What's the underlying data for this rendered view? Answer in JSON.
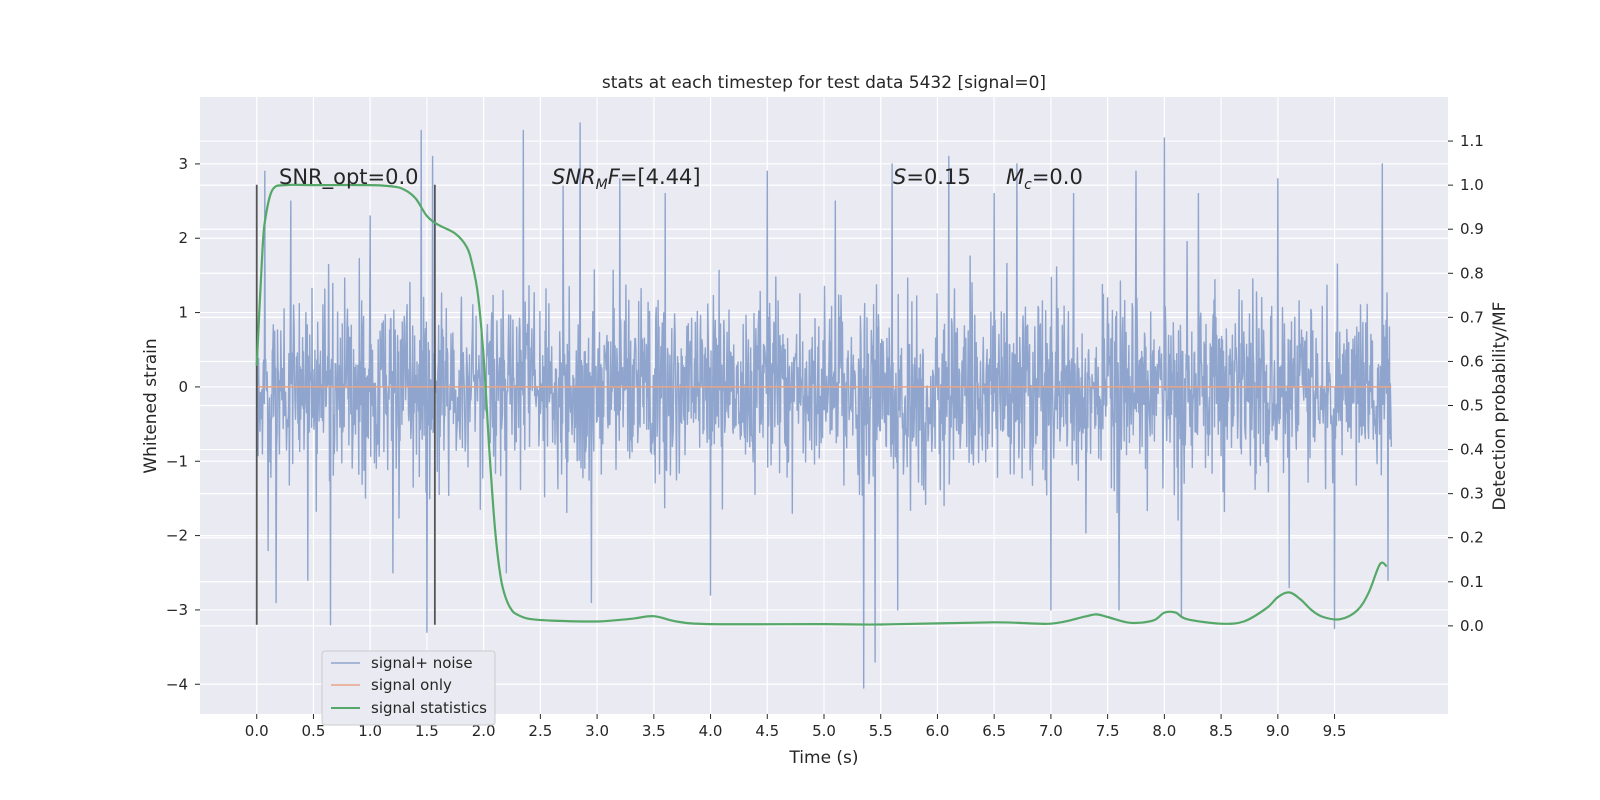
{
  "chart_data": {
    "type": "line",
    "title": "stats at each timestep for test data 5432 [signal=0]",
    "xlabel": "Time (s)",
    "ylabel": "Whitened strain",
    "y2label": "Detection probability/MF",
    "xlim": [
      -0.5,
      10.5
    ],
    "ylim": [
      -4.4,
      3.9
    ],
    "y2lim": [
      -0.2,
      1.2
    ],
    "x_ticks": [
      0.0,
      0.5,
      1.0,
      1.5,
      2.0,
      2.5,
      3.0,
      3.5,
      4.0,
      4.5,
      5.0,
      5.5,
      6.0,
      6.5,
      7.0,
      7.5,
      8.0,
      8.5,
      9.0,
      9.5
    ],
    "x_tick_labels": [
      "0.0",
      "0.5",
      "1.0",
      "1.5",
      "2.0",
      "2.5",
      "3.0",
      "3.5",
      "4.0",
      "4.5",
      "5.0",
      "5.5",
      "6.0",
      "6.5",
      "7.0",
      "7.5",
      "8.0",
      "8.5",
      "9.0",
      "9.5"
    ],
    "y_ticks": [
      3,
      2,
      1,
      0,
      -1,
      -2,
      -3,
      -4
    ],
    "y_tick_labels": [
      "3",
      "2",
      "1",
      "0",
      "−1",
      "−2",
      "−3",
      "−4"
    ],
    "y2_ticks": [
      1.1,
      1.0,
      0.9,
      0.8,
      0.7,
      0.6,
      0.5,
      0.4,
      0.3,
      0.2,
      0.1,
      0.0
    ],
    "y2_tick_labels": [
      "1.1",
      "1.0",
      "0.9",
      "0.8",
      "0.7",
      "0.6",
      "0.5",
      "0.4",
      "0.3",
      "0.2",
      "0.1",
      "0.0"
    ],
    "grid": true,
    "legend_position": "lower-left",
    "colors": {
      "background": "#eaeaf2",
      "grid": "#ffffff",
      "noise": "#8fa5cd",
      "signal": "#e8a487",
      "stats": "#55a868",
      "marker": "#555555"
    },
    "series": [
      {
        "name": "signal+ noise",
        "axis": "left",
        "x_range": [
          0.0,
          10.0
        ],
        "typical_range": [
          -1.5,
          1.5
        ],
        "peaks": [
          {
            "x": 0.07,
            "y": 2.9
          },
          {
            "x": 0.1,
            "y": -2.2
          },
          {
            "x": 0.17,
            "y": -2.9
          },
          {
            "x": 0.3,
            "y": 2.5
          },
          {
            "x": 0.45,
            "y": -2.6
          },
          {
            "x": 0.65,
            "y": -3.2
          },
          {
            "x": 1.0,
            "y": 2.3
          },
          {
            "x": 1.2,
            "y": -2.5
          },
          {
            "x": 1.45,
            "y": 3.45
          },
          {
            "x": 1.5,
            "y": -3.3
          },
          {
            "x": 1.55,
            "y": 3.1
          },
          {
            "x": 2.2,
            "y": -2.5
          },
          {
            "x": 2.35,
            "y": 3.45
          },
          {
            "x": 2.7,
            "y": 2.7
          },
          {
            "x": 2.85,
            "y": 3.55
          },
          {
            "x": 2.95,
            "y": -2.9
          },
          {
            "x": 3.2,
            "y": 2.8
          },
          {
            "x": 3.6,
            "y": 2.6
          },
          {
            "x": 4.0,
            "y": -2.8
          },
          {
            "x": 4.5,
            "y": 2.9
          },
          {
            "x": 5.1,
            "y": 2.5
          },
          {
            "x": 5.35,
            "y": -4.05
          },
          {
            "x": 5.45,
            "y": -3.7
          },
          {
            "x": 5.6,
            "y": 3.0
          },
          {
            "x": 5.65,
            "y": -3.0
          },
          {
            "x": 6.1,
            "y": 3.1
          },
          {
            "x": 6.5,
            "y": 2.6
          },
          {
            "x": 6.7,
            "y": 3.0
          },
          {
            "x": 7.0,
            "y": -3.0
          },
          {
            "x": 7.2,
            "y": 2.6
          },
          {
            "x": 7.6,
            "y": -3.0
          },
          {
            "x": 7.75,
            "y": 2.9
          },
          {
            "x": 8.0,
            "y": 3.35
          },
          {
            "x": 8.15,
            "y": -3.1
          },
          {
            "x": 8.3,
            "y": 2.6
          },
          {
            "x": 9.0,
            "y": 2.8
          },
          {
            "x": 9.1,
            "y": -2.7
          },
          {
            "x": 9.5,
            "y": -3.25
          },
          {
            "x": 9.92,
            "y": 3.0
          },
          {
            "x": 9.97,
            "y": -2.6
          }
        ]
      },
      {
        "name": "signal only",
        "axis": "left",
        "x": [
          0.0,
          10.0
        ],
        "y": [
          0.0,
          0.0
        ]
      },
      {
        "name": "signal statistics",
        "axis": "right",
        "x": [
          0.0,
          0.05,
          0.08,
          0.14,
          0.25,
          0.5,
          1.0,
          1.2,
          1.3,
          1.4,
          1.5,
          1.6,
          1.75,
          1.85,
          1.9,
          1.95,
          2.0,
          2.05,
          2.1,
          2.15,
          2.2,
          2.25,
          2.3,
          2.4,
          2.6,
          3.0,
          3.3,
          3.5,
          3.7,
          4.0,
          5.0,
          5.5,
          6.5,
          7.0,
          7.3,
          7.4,
          7.5,
          7.7,
          7.9,
          8.0,
          8.1,
          8.2,
          8.5,
          8.7,
          8.9,
          9.0,
          9.1,
          9.2,
          9.3,
          9.4,
          9.55,
          9.7,
          9.8,
          9.9,
          9.96
        ],
        "y": [
          0.59,
          0.85,
          0.93,
          0.99,
          1.0,
          1.0,
          1.0,
          0.997,
          0.99,
          0.97,
          0.93,
          0.91,
          0.89,
          0.86,
          0.82,
          0.75,
          0.61,
          0.4,
          0.22,
          0.11,
          0.06,
          0.035,
          0.025,
          0.016,
          0.012,
          0.01,
          0.016,
          0.022,
          0.01,
          0.004,
          0.004,
          0.003,
          0.008,
          0.005,
          0.021,
          0.026,
          0.02,
          0.007,
          0.012,
          0.03,
          0.03,
          0.015,
          0.005,
          0.01,
          0.04,
          0.065,
          0.076,
          0.06,
          0.035,
          0.02,
          0.015,
          0.035,
          0.075,
          0.14,
          0.135
        ]
      }
    ],
    "markers": [
      {
        "x": 0.0,
        "y_from": -3.2,
        "y_to": 2.72
      },
      {
        "x": 1.57,
        "y_from": -3.2,
        "y_to": 2.72
      }
    ],
    "annotations": {
      "snr_opt": "SNR_opt=0.0",
      "snr_mf_label": "SNR",
      "snr_mf_sub": "M",
      "snr_mf_suffix": "F",
      "snr_mf_value": "=[4.44]",
      "s_label": "S",
      "s_value": "=0.15",
      "mc_label": "M",
      "mc_sub": "c",
      "mc_value": "=0.0"
    }
  }
}
